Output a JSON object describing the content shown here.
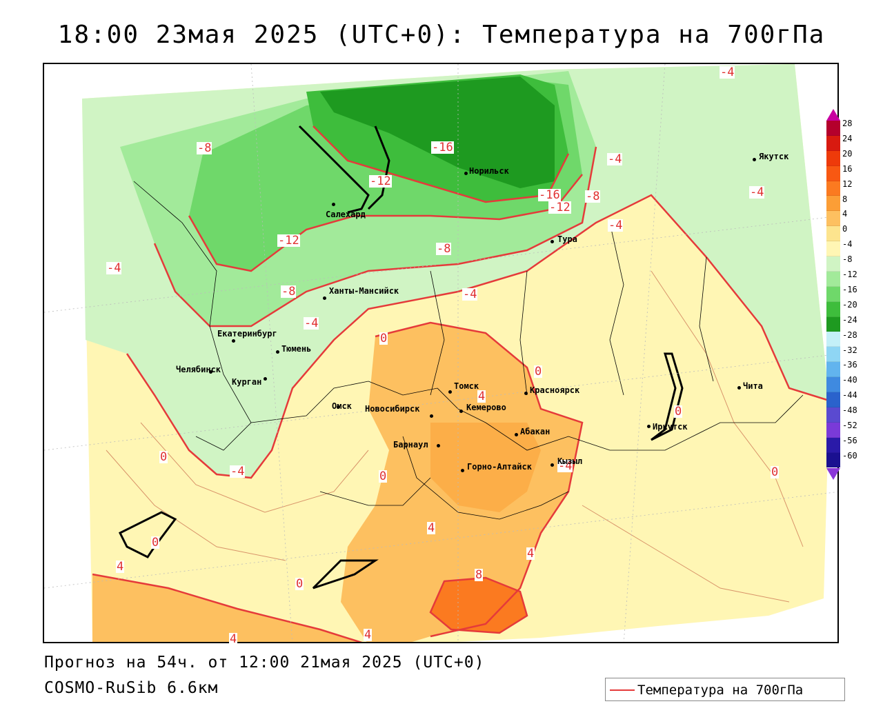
{
  "title": "18:00 23мая 2025 (UTC+0): Температура на 700гПа",
  "forecast_line": "Прогноз на 54ч. от 12:00 21мая 2025 (UTC+0)",
  "model_line": "COSMO-RuSib 6.6км",
  "legend": {
    "label": "Температура на 700гПа",
    "line_color": "#e53a3a"
  },
  "colorbar": {
    "ticks": [
      "28",
      "24",
      "20",
      "16",
      "12",
      "8",
      "4",
      "0",
      "-4",
      "-8",
      "-12",
      "-16",
      "-20",
      "-24",
      "-28",
      "-32",
      "-36",
      "-40",
      "-44",
      "-48",
      "-52",
      "-56",
      "-60"
    ],
    "colors": [
      "#b4002c",
      "#d81a10",
      "#ee3a0a",
      "#f85812",
      "#fb7a20",
      "#fc9e36",
      "#fdc060",
      "#fde48e",
      "#fff6b4",
      "#d0f4c4",
      "#a2ea9a",
      "#6fd86a",
      "#3ebd3c",
      "#1e9a20",
      "#c4f0f8",
      "#8fd6f4",
      "#62b4ee",
      "#3f8ae0",
      "#2a62cc",
      "#5a4ad0",
      "#7a3ad8",
      "#2a1aa8",
      "#1a1090"
    ],
    "top_arrow_color": "#c800a0",
    "bottom_arrow_color": "#8a38d8"
  },
  "cities": [
    {
      "name": "Якутск"
    },
    {
      "name": "Норильск"
    },
    {
      "name": "Салехард"
    },
    {
      "name": "Тура"
    },
    {
      "name": "Ханты-Мансийск"
    },
    {
      "name": "Екатеринбург"
    },
    {
      "name": "Тюмень"
    },
    {
      "name": "Челябинск"
    },
    {
      "name": "Курган"
    },
    {
      "name": "Омск"
    },
    {
      "name": "Новосибирск"
    },
    {
      "name": "Томск"
    },
    {
      "name": "Красноярск"
    },
    {
      "name": "Кемерово"
    },
    {
      "name": "Абакан"
    },
    {
      "name": "Барнаул"
    },
    {
      "name": "Горно-Алтайск"
    },
    {
      "name": "Кызыл"
    },
    {
      "name": "Иркутск"
    },
    {
      "name": "Чита"
    }
  ],
  "contour_labels": [
    "-4",
    "-8",
    "-16",
    "-4",
    "-4",
    "-12",
    "-16",
    "-12",
    "-8",
    "-4",
    "-12",
    "-8",
    "-4",
    "-8",
    "-4",
    "-4",
    "0",
    "0",
    "4",
    "0",
    "0",
    "0",
    "-4",
    "0",
    "4",
    "4",
    "4",
    "8",
    "0",
    "4",
    "4",
    "0",
    "-4"
  ]
}
